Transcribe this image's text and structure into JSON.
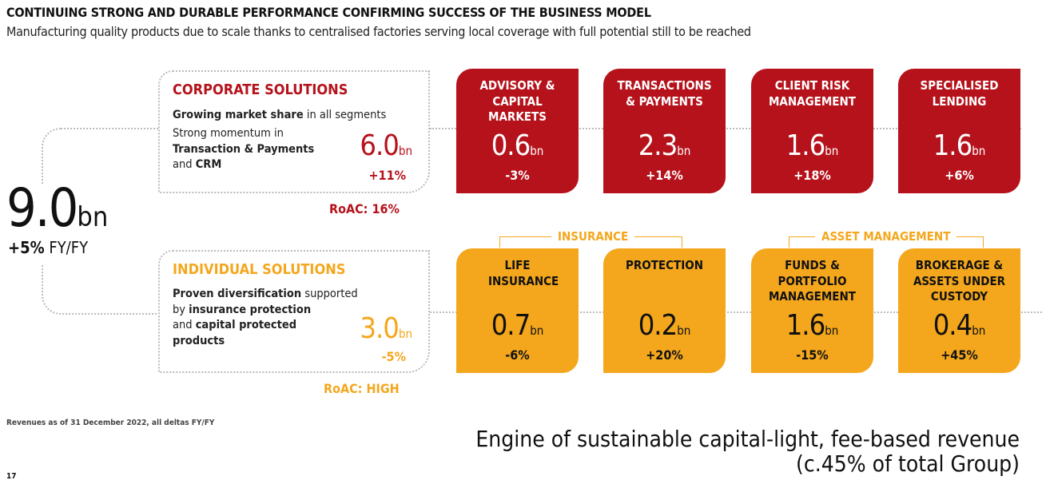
{
  "header": {
    "title": "CONTINUING STRONG AND DURABLE PERFORMANCE CONFIRMING SUCCESS OF THE BUSINESS MODEL",
    "subtitle": "Manufacturing quality products due to scale thanks to centralised factories serving local coverage with full potential still to be reached"
  },
  "total": {
    "value": "9.0",
    "unit": "bn",
    "delta": "+5%",
    "delta_label": "FY/FY"
  },
  "corporate": {
    "title": "CORPORATE SOLUTIONS",
    "line1_bold": "Growing market share",
    "line1_rest": " in all segments",
    "line2": "Strong momentum in",
    "line3_bold": "Transaction & Payments",
    "line4_pre": "and ",
    "line4_bold": "CRM",
    "value": "6.0",
    "unit": "bn",
    "delta": "+11%",
    "roac": "RoAC: 16%",
    "color": "#b5121b"
  },
  "individual": {
    "title": "INDIVIDUAL SOLUTIONS",
    "line1_bold": "Proven diversification",
    "line1_rest": " supported",
    "line2_pre": "by ",
    "line2_bold": "insurance protection",
    "line3_pre": "and ",
    "line3_bold": "capital protected",
    "line4_bold": "products",
    "value": "3.0",
    "unit": "bn",
    "delta": "-5%",
    "roac": "RoAC: HIGH",
    "color": "#f4a71d"
  },
  "groups": {
    "insurance": "INSURANCE",
    "asset_management": "ASSET MANAGEMENT"
  },
  "tiles_corporate": [
    {
      "name": "ADVISORY & CAPITAL MARKETS",
      "value": "0.6",
      "unit": "bn",
      "delta": "-3%"
    },
    {
      "name": "TRANSACTIONS & PAYMENTS",
      "value": "2.3",
      "unit": "bn",
      "delta": "+14%"
    },
    {
      "name": "CLIENT RISK MANAGEMENT",
      "value": "1.6",
      "unit": "bn",
      "delta": "+18%"
    },
    {
      "name": "SPECIALISED LENDING",
      "value": "1.6",
      "unit": "bn",
      "delta": "+6%"
    }
  ],
  "tiles_individual": [
    {
      "name": "LIFE INSURANCE",
      "value": "0.7",
      "unit": "bn",
      "delta": "-6%"
    },
    {
      "name": "PROTECTION",
      "value": "0.2",
      "unit": "bn",
      "delta": "+20%"
    },
    {
      "name": "FUNDS & PORTFOLIO MANAGEMENT",
      "value": "1.6",
      "unit": "bn",
      "delta": "-15%"
    },
    {
      "name": "BROKERAGE & ASSETS UNDER CUSTODY",
      "value": "0.4",
      "unit": "bn",
      "delta": "+45%"
    }
  ],
  "footer": {
    "note": "Revenues as of 31 December 2022, all deltas FY/FY",
    "page": "17",
    "engine_line1": "Engine of sustainable capital-light, fee-based revenue",
    "engine_line2": "(c.45% of total Group)"
  }
}
